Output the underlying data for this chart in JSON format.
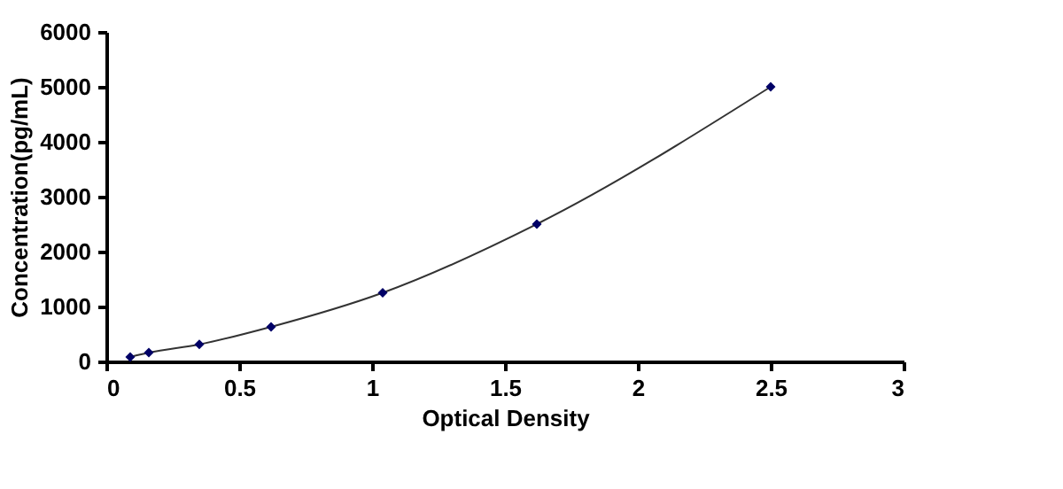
{
  "chart_data": {
    "type": "line",
    "xlabel": "Optical Density",
    "ylabel": "Concentration(pg/mL)",
    "x": [
      0.09,
      0.16,
      0.35,
      0.62,
      1.04,
      1.62,
      2.5
    ],
    "series": [
      {
        "color": "#000066",
        "values": [
          80,
          160,
          310,
          630,
          1250,
          2500,
          5000
        ]
      }
    ],
    "xlim": [
      0,
      3
    ],
    "xticks": [
      0,
      0.5,
      1,
      1.5,
      2,
      2.5,
      3
    ],
    "ylim": [
      0,
      6000
    ],
    "yticks": [
      0,
      1000,
      2000,
      3000,
      4000,
      5000,
      6000
    ],
    "grid": false,
    "marker": "diamond",
    "line_style": "solid"
  }
}
